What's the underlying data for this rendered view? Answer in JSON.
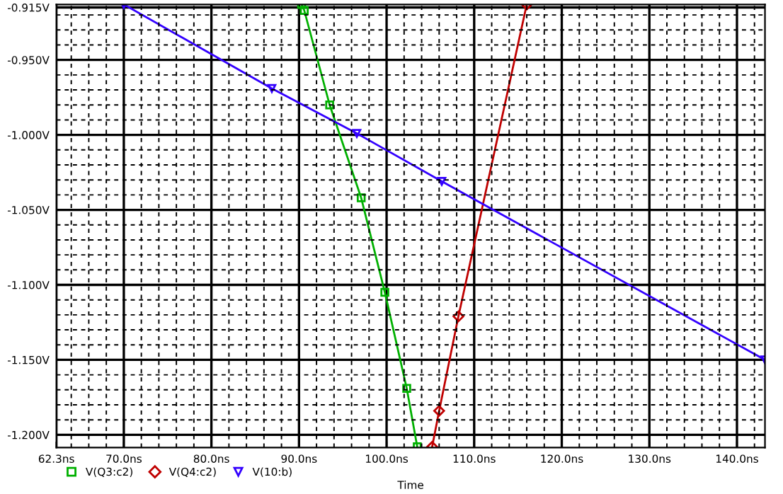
{
  "chart_data": {
    "type": "line",
    "xlabel": "Time",
    "xlim": [
      62.3,
      143.2
    ],
    "ylim": [
      -1.2085,
      -0.913
    ],
    "xticks": [
      {
        "value": 62.3,
        "label": "62.3ns"
      },
      {
        "value": 70,
        "label": "70.0ns"
      },
      {
        "value": 80,
        "label": "80.0ns"
      },
      {
        "value": 90,
        "label": "90.0ns"
      },
      {
        "value": 100,
        "label": "100.0ns"
      },
      {
        "value": 110,
        "label": "110.0ns"
      },
      {
        "value": 120,
        "label": "120.0ns"
      },
      {
        "value": 130,
        "label": "130.0ns"
      },
      {
        "value": 140,
        "label": "140.0ns"
      }
    ],
    "yticks": [
      {
        "value": -0.915,
        "label": "-0.915V"
      },
      {
        "value": -0.95,
        "label": "-0.950V"
      },
      {
        "value": -1.0,
        "label": "-1.000V"
      },
      {
        "value": -1.05,
        "label": "-1.050V"
      },
      {
        "value": -1.1,
        "label": "-1.100V"
      },
      {
        "value": -1.15,
        "label": "-1.150V"
      },
      {
        "value": -1.2,
        "label": "-1.200V"
      }
    ],
    "grid": true,
    "legend": "bottom left",
    "series": [
      {
        "name": "V(Q3:c2)",
        "color": "#00b000",
        "marker": "square",
        "x": [
          90.3,
          90.6,
          93.5,
          97.1,
          99.8,
          102.3,
          103.5
        ],
        "values": [
          -0.913,
          -0.917,
          -0.98,
          -1.042,
          -1.105,
          -1.169,
          -1.208
        ]
      },
      {
        "name": "V(Q4:c2)",
        "color": "#c00000",
        "marker": "diamond",
        "x": [
          105.2,
          106.0,
          108.2,
          116.0
        ],
        "values": [
          -1.208,
          -1.184,
          -1.121,
          -0.913
        ]
      },
      {
        "name": "V(10:b)",
        "color": "#3300ff",
        "marker": "triangle",
        "x": [
          70.0,
          86.9,
          96.6,
          106.3,
          143.2
        ],
        "values": [
          -0.913,
          -0.969,
          -0.999,
          -1.031,
          -1.15
        ]
      }
    ]
  }
}
